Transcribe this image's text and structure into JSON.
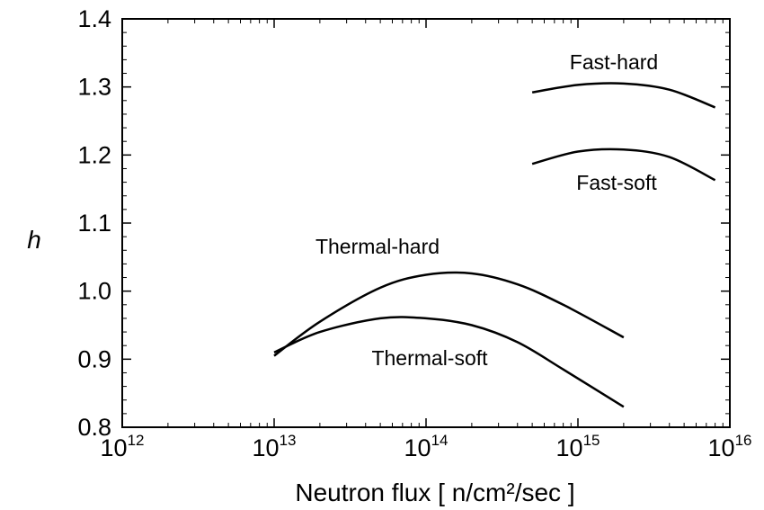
{
  "chart_data": {
    "type": "line",
    "title": "",
    "xlabel": "Neutron flux [ n/cm²/sec ]",
    "ylabel": "h",
    "x_scale": "log",
    "xlim": [
      1000000000000.0,
      1e+16
    ],
    "ylim": [
      0.8,
      1.4
    ],
    "y_ticks": [
      0.8,
      0.9,
      1.0,
      1.1,
      1.2,
      1.3,
      1.4
    ],
    "y_tick_labels": [
      "0.8",
      "0.9",
      "1.0",
      "1.1",
      "1.2",
      "1.3",
      "1.4"
    ],
    "x_ticks": [
      {
        "value": 1000000000000.0,
        "base": "10",
        "exp": "12"
      },
      {
        "value": 10000000000000.0,
        "base": "10",
        "exp": "13"
      },
      {
        "value": 100000000000000.0,
        "base": "10",
        "exp": "14"
      },
      {
        "value": 1000000000000000.0,
        "base": "10",
        "exp": "15"
      },
      {
        "value": 1e+16,
        "base": "10",
        "exp": "16"
      }
    ],
    "grid": false,
    "legend": "none",
    "series": [
      {
        "name": "Fast-hard",
        "x": [
          500000000000000.0,
          1000000000000000.0,
          2000000000000000.0,
          4000000000000000.0,
          8000000000000000.0
        ],
        "y": [
          1.292,
          1.303,
          1.305,
          1.296,
          1.27
        ]
      },
      {
        "name": "Fast-soft",
        "x": [
          500000000000000.0,
          1000000000000000.0,
          2000000000000000.0,
          4000000000000000.0,
          8000000000000000.0
        ],
        "y": [
          1.187,
          1.205,
          1.208,
          1.197,
          1.163
        ]
      },
      {
        "name": "Thermal-hard",
        "x": [
          10000000000000.0,
          20000000000000.0,
          50000000000000.0,
          100000000000000.0,
          200000000000000.0,
          400000000000000.0,
          800000000000000.0,
          2000000000000000.0
        ],
        "y": [
          0.905,
          0.955,
          1.005,
          1.024,
          1.026,
          1.01,
          0.98,
          0.932
        ]
      },
      {
        "name": "Thermal-soft",
        "x": [
          10000000000000.0,
          20000000000000.0,
          50000000000000.0,
          100000000000000.0,
          200000000000000.0,
          400000000000000.0,
          800000000000000.0,
          2000000000000000.0
        ],
        "y": [
          0.91,
          0.94,
          0.96,
          0.96,
          0.95,
          0.925,
          0.885,
          0.83
        ]
      }
    ]
  }
}
